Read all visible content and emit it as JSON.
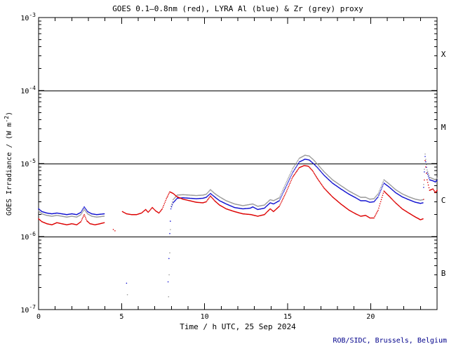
{
  "page": {
    "background": "#ffffff"
  },
  "chart_data": {
    "type": "line",
    "title": "GOES 0.1–0.8nm (red), LYRA Al (blue) & Zr (grey) proxy",
    "title_color": "#000000",
    "xlabel": "Time / h UTC, 25 Sep 2024",
    "ylabel": {
      "prefix": "GOES Irradiance / (W m",
      "sup": "-2",
      "suffix": ")"
    },
    "credit": "ROB/SIDC, Brussels, Belgium",
    "credit_color": "#00008B",
    "axis_color": "#000000",
    "grid": false,
    "legend": "encoded in title",
    "xlim": [
      0,
      24
    ],
    "x_major_ticks": [
      0,
      5,
      10,
      15,
      20
    ],
    "x_minor_tick_step_hours": 1,
    "y_scale": "log10",
    "y_limit_exponents": [
      -7,
      -3
    ],
    "y_tick_exponents": [
      -3,
      -4,
      -5,
      -6,
      -7
    ],
    "flare_class_lines_exponents": [
      -4,
      -5,
      -6
    ],
    "flare_classes": [
      {
        "label": "X",
        "band_exponents": [
          -4,
          -3
        ]
      },
      {
        "label": "M",
        "band_exponents": [
          -5,
          -4
        ]
      },
      {
        "label": "C",
        "band_exponents": [
          -6,
          -5
        ]
      },
      {
        "label": "B",
        "band_exponents": [
          -7,
          -6
        ]
      }
    ],
    "series": [
      {
        "name": "Zr (grey) proxy",
        "color": "#9A9A9A",
        "segments": [
          [
            [
              0,
              2.25e-06
            ],
            [
              0.2,
              2.05e-06
            ],
            [
              0.5,
              1.95e-06
            ],
            [
              0.8,
              1.9e-06
            ],
            [
              1.1,
              1.95e-06
            ],
            [
              1.4,
              1.9e-06
            ],
            [
              1.7,
              1.85e-06
            ],
            [
              2.0,
              1.9e-06
            ],
            [
              2.3,
              1.85e-06
            ],
            [
              2.55,
              2e-06
            ],
            [
              2.75,
              2.35e-06
            ],
            [
              2.95,
              2.05e-06
            ],
            [
              3.2,
              1.9e-06
            ],
            [
              3.5,
              1.85e-06
            ],
            [
              3.95,
              1.9e-06
            ]
          ],
          [
            [
              7.83,
              1.5e-07
            ],
            [
              7.9,
              6e-07
            ],
            [
              7.98,
              2.6e-06
            ],
            [
              8.1,
              3.2e-06
            ],
            [
              8.35,
              3.7e-06
            ],
            [
              8.7,
              3.75e-06
            ],
            [
              9.1,
              3.7e-06
            ],
            [
              9.5,
              3.65e-06
            ],
            [
              9.9,
              3.7e-06
            ],
            [
              10.1,
              3.8e-06
            ],
            [
              10.35,
              4.4e-06
            ],
            [
              10.6,
              3.9e-06
            ],
            [
              10.9,
              3.5e-06
            ],
            [
              11.3,
              3.1e-06
            ],
            [
              11.8,
              2.8e-06
            ],
            [
              12.3,
              2.65e-06
            ],
            [
              12.9,
              2.8e-06
            ],
            [
              13.2,
              2.6e-06
            ],
            [
              13.6,
              2.7e-06
            ],
            [
              13.95,
              3.2e-06
            ],
            [
              14.15,
              3.1e-06
            ],
            [
              14.5,
              3.4e-06
            ],
            [
              14.9,
              5.4e-06
            ],
            [
              15.3,
              8.5e-06
            ],
            [
              15.7,
              1.18e-05
            ],
            [
              16.05,
              1.3e-05
            ],
            [
              16.3,
              1.27e-05
            ],
            [
              16.55,
              1.13e-05
            ],
            [
              16.8,
              9.8e-06
            ],
            [
              17.2,
              7.7e-06
            ],
            [
              17.7,
              6e-06
            ],
            [
              18.2,
              5e-06
            ],
            [
              18.7,
              4.2e-06
            ],
            [
              19.1,
              3.75e-06
            ],
            [
              19.4,
              3.45e-06
            ],
            [
              19.7,
              3.45e-06
            ],
            [
              19.95,
              3.25e-06
            ],
            [
              20.2,
              3.3e-06
            ],
            [
              20.45,
              3.85e-06
            ],
            [
              20.8,
              6e-06
            ],
            [
              21.1,
              5.3e-06
            ],
            [
              21.5,
              4.4e-06
            ],
            [
              21.9,
              3.85e-06
            ],
            [
              22.3,
              3.5e-06
            ],
            [
              22.7,
              3.25e-06
            ],
            [
              23.0,
              3.15e-06
            ],
            [
              23.15,
              3.2e-06
            ],
            [
              23.28,
              1.35e-05
            ],
            [
              23.4,
              8.2e-06
            ],
            [
              23.55,
              6.5e-06
            ],
            [
              23.75,
              6.2e-06
            ],
            [
              23.9,
              6e-06
            ],
            [
              24,
              6.3e-06
            ]
          ]
        ],
        "stray_points": [
          [
            5.35,
            1.6e-07
          ]
        ]
      },
      {
        "name": "LYRA Al proxy",
        "color": "#1010D0",
        "segments": [
          [
            [
              0,
              2.4e-06
            ],
            [
              0.2,
              2.2e-06
            ],
            [
              0.5,
              2.1e-06
            ],
            [
              0.8,
              2.05e-06
            ],
            [
              1.1,
              2.1e-06
            ],
            [
              1.4,
              2.05e-06
            ],
            [
              1.7,
              2e-06
            ],
            [
              2.0,
              2.05e-06
            ],
            [
              2.3,
              2e-06
            ],
            [
              2.55,
              2.15e-06
            ],
            [
              2.75,
              2.55e-06
            ],
            [
              2.95,
              2.2e-06
            ],
            [
              3.2,
              2.05e-06
            ],
            [
              3.5,
              2e-06
            ],
            [
              3.95,
              2.05e-06
            ]
          ],
          [
            [
              7.8,
              2.4e-07
            ],
            [
              7.85,
              5e-07
            ],
            [
              7.9,
              1.1e-06
            ],
            [
              7.97,
              2.4e-06
            ],
            [
              8.1,
              2.9e-06
            ],
            [
              8.35,
              3.35e-06
            ],
            [
              8.7,
              3.4e-06
            ],
            [
              9.1,
              3.35e-06
            ],
            [
              9.5,
              3.3e-06
            ],
            [
              9.9,
              3.35e-06
            ],
            [
              10.1,
              3.45e-06
            ],
            [
              10.35,
              3.9e-06
            ],
            [
              10.6,
              3.5e-06
            ],
            [
              10.9,
              3.1e-06
            ],
            [
              11.3,
              2.8e-06
            ],
            [
              11.8,
              2.5e-06
            ],
            [
              12.3,
              2.4e-06
            ],
            [
              12.75,
              2.45e-06
            ],
            [
              12.9,
              2.55e-06
            ],
            [
              13.2,
              2.35e-06
            ],
            [
              13.6,
              2.45e-06
            ],
            [
              13.95,
              2.9e-06
            ],
            [
              14.15,
              2.8e-06
            ],
            [
              14.5,
              3.1e-06
            ],
            [
              14.9,
              4.8e-06
            ],
            [
              15.3,
              7.5e-06
            ],
            [
              15.7,
              1.05e-05
            ],
            [
              16.05,
              1.15e-05
            ],
            [
              16.3,
              1.12e-05
            ],
            [
              16.55,
              1e-05
            ],
            [
              16.8,
              8.8e-06
            ],
            [
              17.2,
              6.9e-06
            ],
            [
              17.7,
              5.4e-06
            ],
            [
              18.2,
              4.5e-06
            ],
            [
              18.7,
              3.8e-06
            ],
            [
              19.1,
              3.4e-06
            ],
            [
              19.4,
              3.1e-06
            ],
            [
              19.7,
              3.1e-06
            ],
            [
              19.95,
              2.95e-06
            ],
            [
              20.2,
              3e-06
            ],
            [
              20.45,
              3.5e-06
            ],
            [
              20.8,
              5.4e-06
            ],
            [
              21.1,
              4.8e-06
            ],
            [
              21.5,
              4e-06
            ],
            [
              21.9,
              3.5e-06
            ],
            [
              22.3,
              3.2e-06
            ],
            [
              22.7,
              2.95e-06
            ],
            [
              23.0,
              2.85e-06
            ],
            [
              23.15,
              2.9e-06
            ],
            [
              23.28,
              1.25e-05
            ],
            [
              23.4,
              7.5e-06
            ],
            [
              23.55,
              6e-06
            ],
            [
              23.75,
              5.8e-06
            ],
            [
              23.9,
              5.6e-06
            ],
            [
              24,
              5.9e-06
            ]
          ]
        ],
        "stray_points": [
          [
            5.3,
            2.3e-07
          ]
        ]
      },
      {
        "name": "GOES 0.1-0.8nm",
        "color": "#DD0000",
        "segments": [
          [
            [
              0,
              1.75e-06
            ],
            [
              0.2,
              1.6e-06
            ],
            [
              0.5,
              1.5e-06
            ],
            [
              0.8,
              1.45e-06
            ],
            [
              1.1,
              1.55e-06
            ],
            [
              1.4,
              1.5e-06
            ],
            [
              1.7,
              1.45e-06
            ],
            [
              2.0,
              1.5e-06
            ],
            [
              2.3,
              1.45e-06
            ],
            [
              2.55,
              1.6e-06
            ],
            [
              2.75,
              2e-06
            ],
            [
              2.9,
              1.65e-06
            ],
            [
              3.1,
              1.5e-06
            ],
            [
              3.4,
              1.45e-06
            ],
            [
              3.7,
              1.5e-06
            ],
            [
              3.95,
              1.55e-06
            ]
          ],
          [
            [
              5.05,
              2.2e-06
            ],
            [
              5.3,
              2.05e-06
            ],
            [
              5.6,
              2e-06
            ],
            [
              5.9,
              2e-06
            ],
            [
              6.2,
              2.1e-06
            ],
            [
              6.45,
              2.35e-06
            ],
            [
              6.6,
              2.15e-06
            ],
            [
              6.85,
              2.5e-06
            ],
            [
              7.05,
              2.25e-06
            ],
            [
              7.25,
              2.1e-06
            ],
            [
              7.45,
              2.4e-06
            ],
            [
              7.7,
              3.3e-06
            ],
            [
              7.9,
              4.1e-06
            ],
            [
              8.1,
              3.9e-06
            ],
            [
              8.35,
              3.5e-06
            ],
            [
              8.7,
              3.25e-06
            ],
            [
              9.1,
              3.1e-06
            ],
            [
              9.5,
              2.95e-06
            ],
            [
              9.9,
              2.9e-06
            ],
            [
              10.1,
              3e-06
            ],
            [
              10.35,
              3.6e-06
            ],
            [
              10.6,
              3.1e-06
            ],
            [
              10.9,
              2.7e-06
            ],
            [
              11.3,
              2.4e-06
            ],
            [
              11.8,
              2.2e-06
            ],
            [
              12.3,
              2.05e-06
            ],
            [
              12.8,
              2e-06
            ],
            [
              13.2,
              1.9e-06
            ],
            [
              13.6,
              2e-06
            ],
            [
              13.95,
              2.4e-06
            ],
            [
              14.15,
              2.2e-06
            ],
            [
              14.5,
              2.6e-06
            ],
            [
              14.9,
              4e-06
            ],
            [
              15.3,
              6.5e-06
            ],
            [
              15.7,
              8.8e-06
            ],
            [
              16.0,
              9.4e-06
            ],
            [
              16.25,
              9.2e-06
            ],
            [
              16.5,
              8e-06
            ],
            [
              16.8,
              6.2e-06
            ],
            [
              17.2,
              4.6e-06
            ],
            [
              17.7,
              3.5e-06
            ],
            [
              18.2,
              2.8e-06
            ],
            [
              18.7,
              2.3e-06
            ],
            [
              19.1,
              2.05e-06
            ],
            [
              19.4,
              1.9e-06
            ],
            [
              19.7,
              1.95e-06
            ],
            [
              19.95,
              1.8e-06
            ],
            [
              20.2,
              1.8e-06
            ],
            [
              20.45,
              2.3e-06
            ],
            [
              20.8,
              4.2e-06
            ],
            [
              21.1,
              3.6e-06
            ],
            [
              21.5,
              2.9e-06
            ],
            [
              21.9,
              2.4e-06
            ],
            [
              22.3,
              2.1e-06
            ],
            [
              22.7,
              1.85e-06
            ],
            [
              23.0,
              1.7e-06
            ],
            [
              23.15,
              1.75e-06
            ],
            [
              23.28,
              1.1e-05
            ],
            [
              23.4,
              6e-06
            ],
            [
              23.55,
              4.3e-06
            ],
            [
              23.75,
              4.5e-06
            ],
            [
              23.9,
              4e-06
            ],
            [
              24,
              4.3e-06
            ]
          ]
        ],
        "stray_points": [
          [
            4.5,
            1.25e-06
          ],
          [
            4.6,
            1.2e-06
          ]
        ]
      }
    ]
  }
}
